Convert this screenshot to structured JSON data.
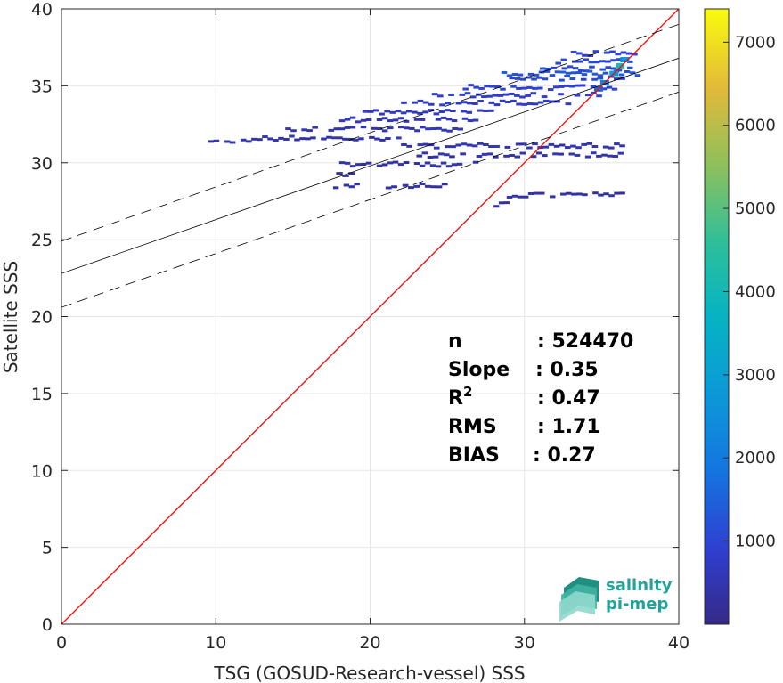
{
  "chart_data": {
    "type": "heatmap",
    "title": "",
    "xlabel": "TSG (GOSUD-Research-vessel) SSS",
    "ylabel": "Satellite SSS",
    "xlim": [
      0,
      40
    ],
    "ylim": [
      0,
      40
    ],
    "xticks": [
      "0",
      "10",
      "20",
      "30",
      "40"
    ],
    "yticks": [
      "0",
      "5",
      "10",
      "15",
      "20",
      "25",
      "30",
      "35",
      "40"
    ],
    "grid": true,
    "colorbar": {
      "range": [
        0,
        7400
      ],
      "ticks": [
        "1000",
        "2000",
        "3000",
        "4000",
        "5000",
        "6000",
        "7000"
      ],
      "colormap": "parula"
    },
    "lines": [
      {
        "label": "identity",
        "color": "#ff0000",
        "style": "solid",
        "x": [
          0,
          40
        ],
        "y": [
          0,
          40
        ]
      },
      {
        "label": "regression",
        "color": "#000000",
        "style": "solid",
        "x": [
          0,
          40
        ],
        "y": [
          22.8,
          36.8
        ]
      },
      {
        "label": "regression upper",
        "color": "#000000",
        "style": "dashed",
        "x": [
          0,
          40
        ],
        "y": [
          24.9,
          39.0
        ]
      },
      {
        "label": "regression lower",
        "color": "#000000",
        "style": "dashed",
        "x": [
          0,
          40
        ],
        "y": [
          20.6,
          34.6
        ]
      }
    ],
    "density_bands": [
      {
        "x": [
          9.5,
          13
        ],
        "y": 31.4,
        "level": 300
      },
      {
        "x": [
          13,
          22
        ],
        "y": 31.6,
        "level": 300
      },
      {
        "x": [
          14.5,
          26
        ],
        "y": 32.2,
        "level": 400
      },
      {
        "x": [
          18,
          27
        ],
        "y": 32.8,
        "level": 450
      },
      {
        "x": [
          19.5,
          28
        ],
        "y": 33.3,
        "level": 500
      },
      {
        "x": [
          22,
          33
        ],
        "y": 33.9,
        "level": 600
      },
      {
        "x": [
          24,
          35
        ],
        "y": 34.4,
        "level": 700
      },
      {
        "x": [
          26,
          36
        ],
        "y": 34.9,
        "level": 800
      },
      {
        "x": [
          29,
          36.5
        ],
        "y": 35.5,
        "level": 900
      },
      {
        "x": [
          31,
          37
        ],
        "y": 36.1,
        "level": 1000
      },
      {
        "x": [
          32,
          37
        ],
        "y": 36.6,
        "level": 900
      },
      {
        "x": [
          33,
          37.3
        ],
        "y": 37.1,
        "level": 800
      },
      {
        "x": [
          22,
          36.5
        ],
        "y": 31.1,
        "level": 350
      },
      {
        "x": [
          23,
          36.4
        ],
        "y": 30.5,
        "level": 300
      },
      {
        "x": [
          18,
          27
        ],
        "y": 29.9,
        "level": 250
      },
      {
        "x": [
          17.8,
          19
        ],
        "y": 29.2,
        "level": 200
      },
      {
        "x": [
          17.6,
          19.3
        ],
        "y": 28.5,
        "level": 200
      },
      {
        "x": [
          21,
          25
        ],
        "y": 28.5,
        "level": 200
      },
      {
        "x": [
          28.5,
          36.5
        ],
        "y": 27.9,
        "level": 250
      },
      {
        "x": [
          28,
          29
        ],
        "y": 27.3,
        "level": 200
      },
      {
        "x": [
          28.5,
          37.5
        ],
        "y": 35.8,
        "level": 1200
      }
    ],
    "hot_spots": [
      {
        "x": 35.2,
        "y": 35.2,
        "level": 2200
      },
      {
        "x": 35.8,
        "y": 35.8,
        "level": 3000
      },
      {
        "x": 36.2,
        "y": 36.3,
        "level": 4200
      },
      {
        "x": 34.8,
        "y": 34.8,
        "level": 1600
      },
      {
        "x": 36.5,
        "y": 36.7,
        "level": 2600
      }
    ]
  },
  "stats": [
    {
      "key": "n",
      "value": ": 524470"
    },
    {
      "key": "Slope",
      "value": ": 0.35"
    },
    {
      "key": "R",
      "sup": "2",
      "value": ": 0.47"
    },
    {
      "key": "RMS",
      "value": ": 1.71"
    },
    {
      "key": "BIAS",
      "value": ": 0.27"
    }
  ],
  "logo": {
    "line1": "salinity",
    "line2": "pi-mep"
  }
}
